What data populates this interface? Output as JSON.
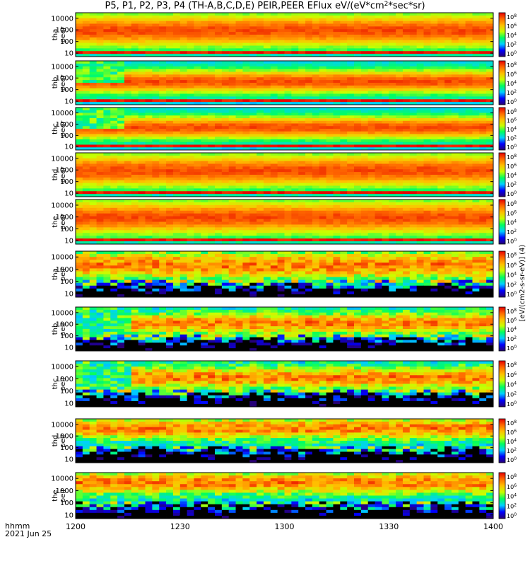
{
  "chart_data": {
    "type": "heatmap",
    "title": "P5, P1, P2, P3, P4 (TH-A,B,C,D,E) PEIR,PEER EFlux eV/(eV*cm2*sec*sr)",
    "title_parts": {
      "before": "P5, P1, P2, P3, P4 (TH-A,B,C,D,E) PEIR,PEER EFlux eV/(eV*cm",
      "sup": "2",
      "after": "*sec*sr)"
    },
    "xlabel": "hhmm",
    "date_label": "2021 Jun 25",
    "x_ticks": [
      "1200",
      "1230",
      "1300",
      "1330",
      "1400"
    ],
    "xlim": [
      "12:00",
      "14:00"
    ],
    "y_scale": "log",
    "y_ticks": [
      "10000",
      "1000",
      "100",
      "10"
    ],
    "ylim": [
      5,
      30000
    ],
    "colorbar_label": "[eV/(cm2-s-sr-eV)] (4)",
    "colorbar_scale": "log",
    "colorbar_ticks": [
      "10^8",
      "10^6",
      "10^4",
      "10^2",
      "10^0"
    ],
    "colormap": [
      "#280070",
      "#0000ff",
      "#00d0ff",
      "#00ff60",
      "#c8ff00",
      "#ffc000",
      "#ff6a00",
      "#e60000"
    ],
    "panels": [
      {
        "probe": "tha",
        "species": "peer",
        "dominant_flux_energy_range_eV": [
          50,
          15000
        ],
        "low_energy_band_eV": [
          7,
          15
        ]
      },
      {
        "probe": "thb",
        "species": "peer",
        "dominant_flux_energy_range_eV": [
          80,
          3000
        ],
        "low_energy_band_eV": [
          7,
          15
        ]
      },
      {
        "probe": "thc",
        "species": "peer",
        "dominant_flux_energy_range_eV": [
          80,
          3000
        ],
        "low_energy_band_eV": [
          7,
          15
        ]
      },
      {
        "probe": "thd",
        "species": "peer",
        "dominant_flux_energy_range_eV": [
          50,
          15000
        ],
        "low_energy_band_eV": [
          7,
          12
        ]
      },
      {
        "probe": "the",
        "species": "peer",
        "dominant_flux_energy_range_eV": [
          50,
          15000
        ],
        "low_energy_band_eV": [
          7,
          12
        ]
      },
      {
        "probe": "tha",
        "species": "peir",
        "dominant_flux_energy_range_eV": [
          300,
          15000
        ]
      },
      {
        "probe": "thb",
        "species": "peir",
        "dominant_flux_energy_range_eV": [
          300,
          5000
        ]
      },
      {
        "probe": "thc",
        "species": "peir",
        "dominant_flux_energy_range_eV": [
          300,
          5000
        ]
      },
      {
        "probe": "thd",
        "species": "peir",
        "dominant_flux_energy_range_eV": [
          1000,
          20000
        ]
      },
      {
        "probe": "the",
        "species": "peir",
        "dominant_flux_energy_range_eV": [
          1000,
          20000
        ]
      }
    ]
  }
}
